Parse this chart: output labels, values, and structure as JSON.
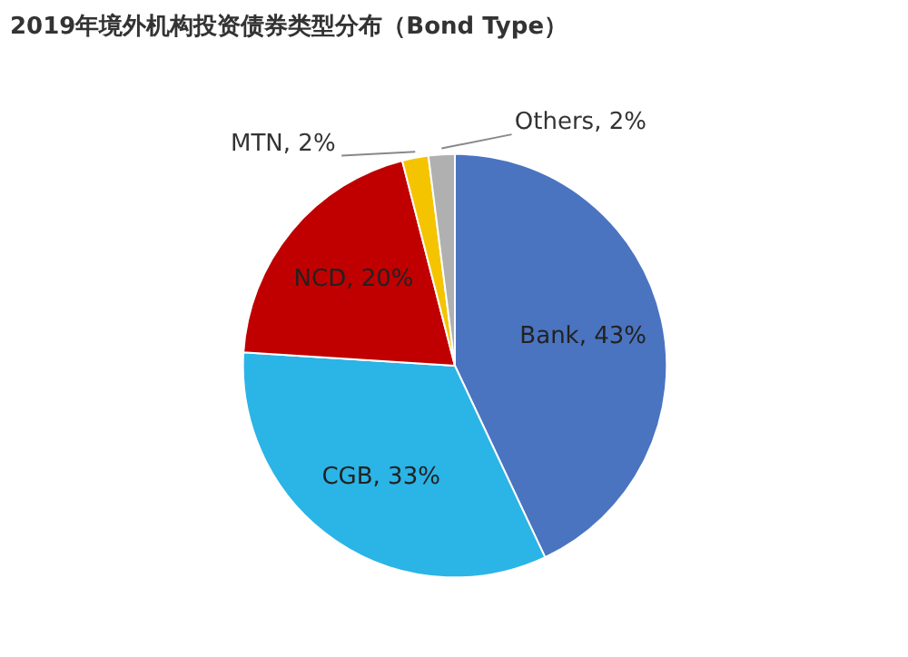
{
  "chart_data": {
    "type": "pie",
    "title": "2019年境外机构投资债券类型分布（Bond Type）",
    "categories": [
      "Bank",
      "CGB",
      "NCD",
      "MTN",
      "Others"
    ],
    "values": [
      43,
      33,
      20,
      2,
      2
    ],
    "colors": [
      "#4a74c0",
      "#2bb4e6",
      "#c00000",
      "#f5c400",
      "#b0b0b0"
    ],
    "value_labels": [
      "43%",
      "33%",
      "20%",
      "2%",
      "2%"
    ]
  }
}
